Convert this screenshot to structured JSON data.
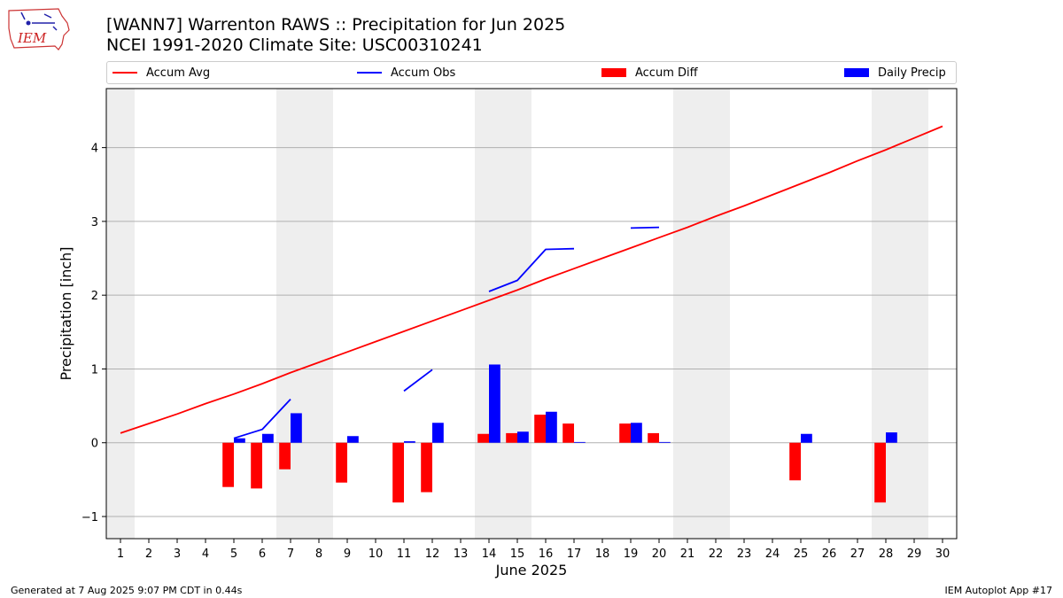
{
  "header": {
    "title": "[WANN7] Warrenton RAWS :: Precipitation for Jun 2025",
    "subtitle": "NCEI 1991-2020 Climate Site: USC00310241"
  },
  "logo": {
    "text": "IEM"
  },
  "footer": {
    "generated": "Generated at 7 Aug 2025 9:07 PM CDT in 0.44s",
    "app": "IEM Autoplot App #17"
  },
  "colors": {
    "avg": "#ff0000",
    "obs": "#0000ff",
    "diff": "#ff0000",
    "daily": "#0000ff",
    "weekend": "#eeeeee",
    "grid": "#b0b0b0"
  },
  "chart_data": {
    "type": "bar",
    "title": "[WANN7] Warrenton RAWS :: Precipitation for Jun 2025",
    "subtitle": "NCEI 1991-2020 Climate Site: USC00310241",
    "xlabel": "June 2025",
    "ylabel": "Precipitation [inch]",
    "ylim": [
      -1.3,
      4.8
    ],
    "xlim": [
      0.5,
      30.5
    ],
    "yticks": [
      -1,
      0,
      1,
      2,
      3,
      4
    ],
    "ytick_labels": [
      "−1",
      "0",
      "1",
      "2",
      "3",
      "4"
    ],
    "grid": "horizontal",
    "legend_position": "top",
    "weekend_days": [
      1,
      7,
      8,
      14,
      15,
      21,
      22,
      28,
      29
    ],
    "categories": [
      "1",
      "2",
      "3",
      "4",
      "5",
      "6",
      "7",
      "8",
      "9",
      "10",
      "11",
      "12",
      "13",
      "14",
      "15",
      "16",
      "17",
      "18",
      "19",
      "20",
      "21",
      "22",
      "23",
      "24",
      "25",
      "26",
      "27",
      "28",
      "29",
      "30"
    ],
    "series": [
      {
        "name": "Accum Avg",
        "kind": "line",
        "color": "#ff0000",
        "segments": [
          [
            [
              1,
              0.13
            ],
            [
              2,
              0.26
            ],
            [
              3,
              0.39
            ],
            [
              4,
              0.53
            ],
            [
              5,
              0.66
            ],
            [
              6,
              0.8
            ],
            [
              7,
              0.95
            ],
            [
              8,
              1.09
            ],
            [
              9,
              1.23
            ],
            [
              10,
              1.37
            ],
            [
              11,
              1.51
            ],
            [
              12,
              1.65
            ],
            [
              13,
              1.79
            ],
            [
              14,
              1.93
            ],
            [
              15,
              2.07
            ],
            [
              16,
              2.22
            ],
            [
              17,
              2.36
            ],
            [
              18,
              2.5
            ],
            [
              19,
              2.64
            ],
            [
              20,
              2.78
            ],
            [
              21,
              2.92
            ],
            [
              22,
              3.07
            ],
            [
              23,
              3.21
            ],
            [
              24,
              3.36
            ],
            [
              25,
              3.51
            ],
            [
              26,
              3.66
            ],
            [
              27,
              3.82
            ],
            [
              28,
              3.97
            ],
            [
              29,
              4.13
            ],
            [
              30,
              4.29
            ]
          ]
        ]
      },
      {
        "name": "Accum Obs",
        "kind": "line",
        "color": "#0000ff",
        "segments": [
          [
            [
              5,
              0.06
            ],
            [
              6,
              0.18
            ],
            [
              7,
              0.59
            ]
          ],
          [
            [
              11,
              0.7
            ],
            [
              12,
              0.99
            ]
          ],
          [
            [
              14,
              2.05
            ],
            [
              15,
              2.2
            ],
            [
              16,
              2.62
            ],
            [
              17,
              2.63
            ]
          ],
          [
            [
              19,
              2.91
            ],
            [
              20,
              2.92
            ]
          ]
        ]
      },
      {
        "name": "Accum Diff",
        "kind": "bar",
        "color": "#ff0000",
        "offset": -0.2,
        "points": [
          [
            5,
            -0.6
          ],
          [
            6,
            -0.62
          ],
          [
            7,
            -0.36
          ],
          [
            9,
            -0.54
          ],
          [
            11,
            -0.81
          ],
          [
            12,
            -0.67
          ],
          [
            14,
            0.12
          ],
          [
            15,
            0.13
          ],
          [
            16,
            0.38
          ],
          [
            17,
            0.26
          ],
          [
            19,
            0.26
          ],
          [
            20,
            0.13
          ],
          [
            25,
            -0.51
          ],
          [
            28,
            -0.81
          ]
        ]
      },
      {
        "name": "Daily Precip",
        "kind": "bar",
        "color": "#0000ff",
        "offset": 0.2,
        "points": [
          [
            5,
            0.06
          ],
          [
            6,
            0.12
          ],
          [
            7,
            0.4
          ],
          [
            9,
            0.09
          ],
          [
            11,
            0.02
          ],
          [
            12,
            0.27
          ],
          [
            14,
            1.06
          ],
          [
            15,
            0.15
          ],
          [
            16,
            0.42
          ],
          [
            17,
            0.01
          ],
          [
            19,
            0.27
          ],
          [
            20,
            0.01
          ],
          [
            25,
            0.12
          ],
          [
            28,
            0.14
          ]
        ]
      }
    ]
  }
}
